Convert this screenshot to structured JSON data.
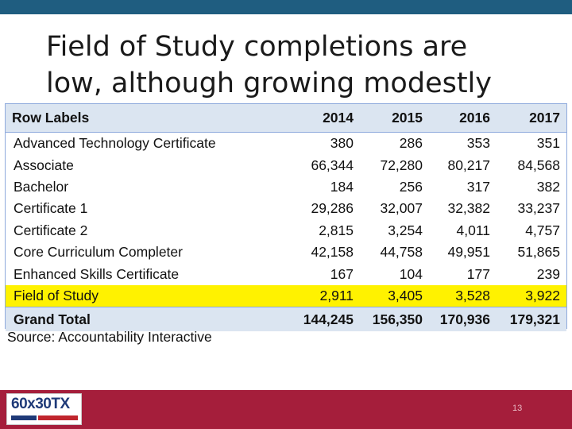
{
  "slide": {
    "title_line1": "Field of Study completions are",
    "title_line2": "low, although growing modestly",
    "source": "Source: Accountability Interactive",
    "page_number": "13",
    "logo_text": "60x30TX"
  },
  "colors": {
    "top_bar": "#1f5d80",
    "footer_bar": "#a51e3b",
    "header_fill": "#dbe5f1",
    "highlight": "#fff200"
  },
  "table": {
    "headers": [
      "Row Labels",
      "2014",
      "2015",
      "2016",
      "2017"
    ],
    "rows": [
      [
        "Advanced Technology Certificate",
        "380",
        "286",
        "353",
        "351"
      ],
      [
        "Associate",
        "66,344",
        "72,280",
        "80,217",
        "84,568"
      ],
      [
        "Bachelor",
        "184",
        "256",
        "317",
        "382"
      ],
      [
        "Certificate 1",
        "29,286",
        "32,007",
        "32,382",
        "33,237"
      ],
      [
        "Certificate 2",
        "2,815",
        "3,254",
        "4,011",
        "4,757"
      ],
      [
        "Core Curriculum Completer",
        "42,158",
        "44,758",
        "49,951",
        "51,865"
      ],
      [
        "Enhanced Skills Certificate",
        "167",
        "104",
        "177",
        "239"
      ],
      [
        "Field of Study",
        "2,911",
        "3,405",
        "3,528",
        "3,922"
      ]
    ],
    "highlighted_row": "Field of Study",
    "total": [
      "Grand Total",
      "144,245",
      "156,350",
      "170,936",
      "179,321"
    ]
  }
}
